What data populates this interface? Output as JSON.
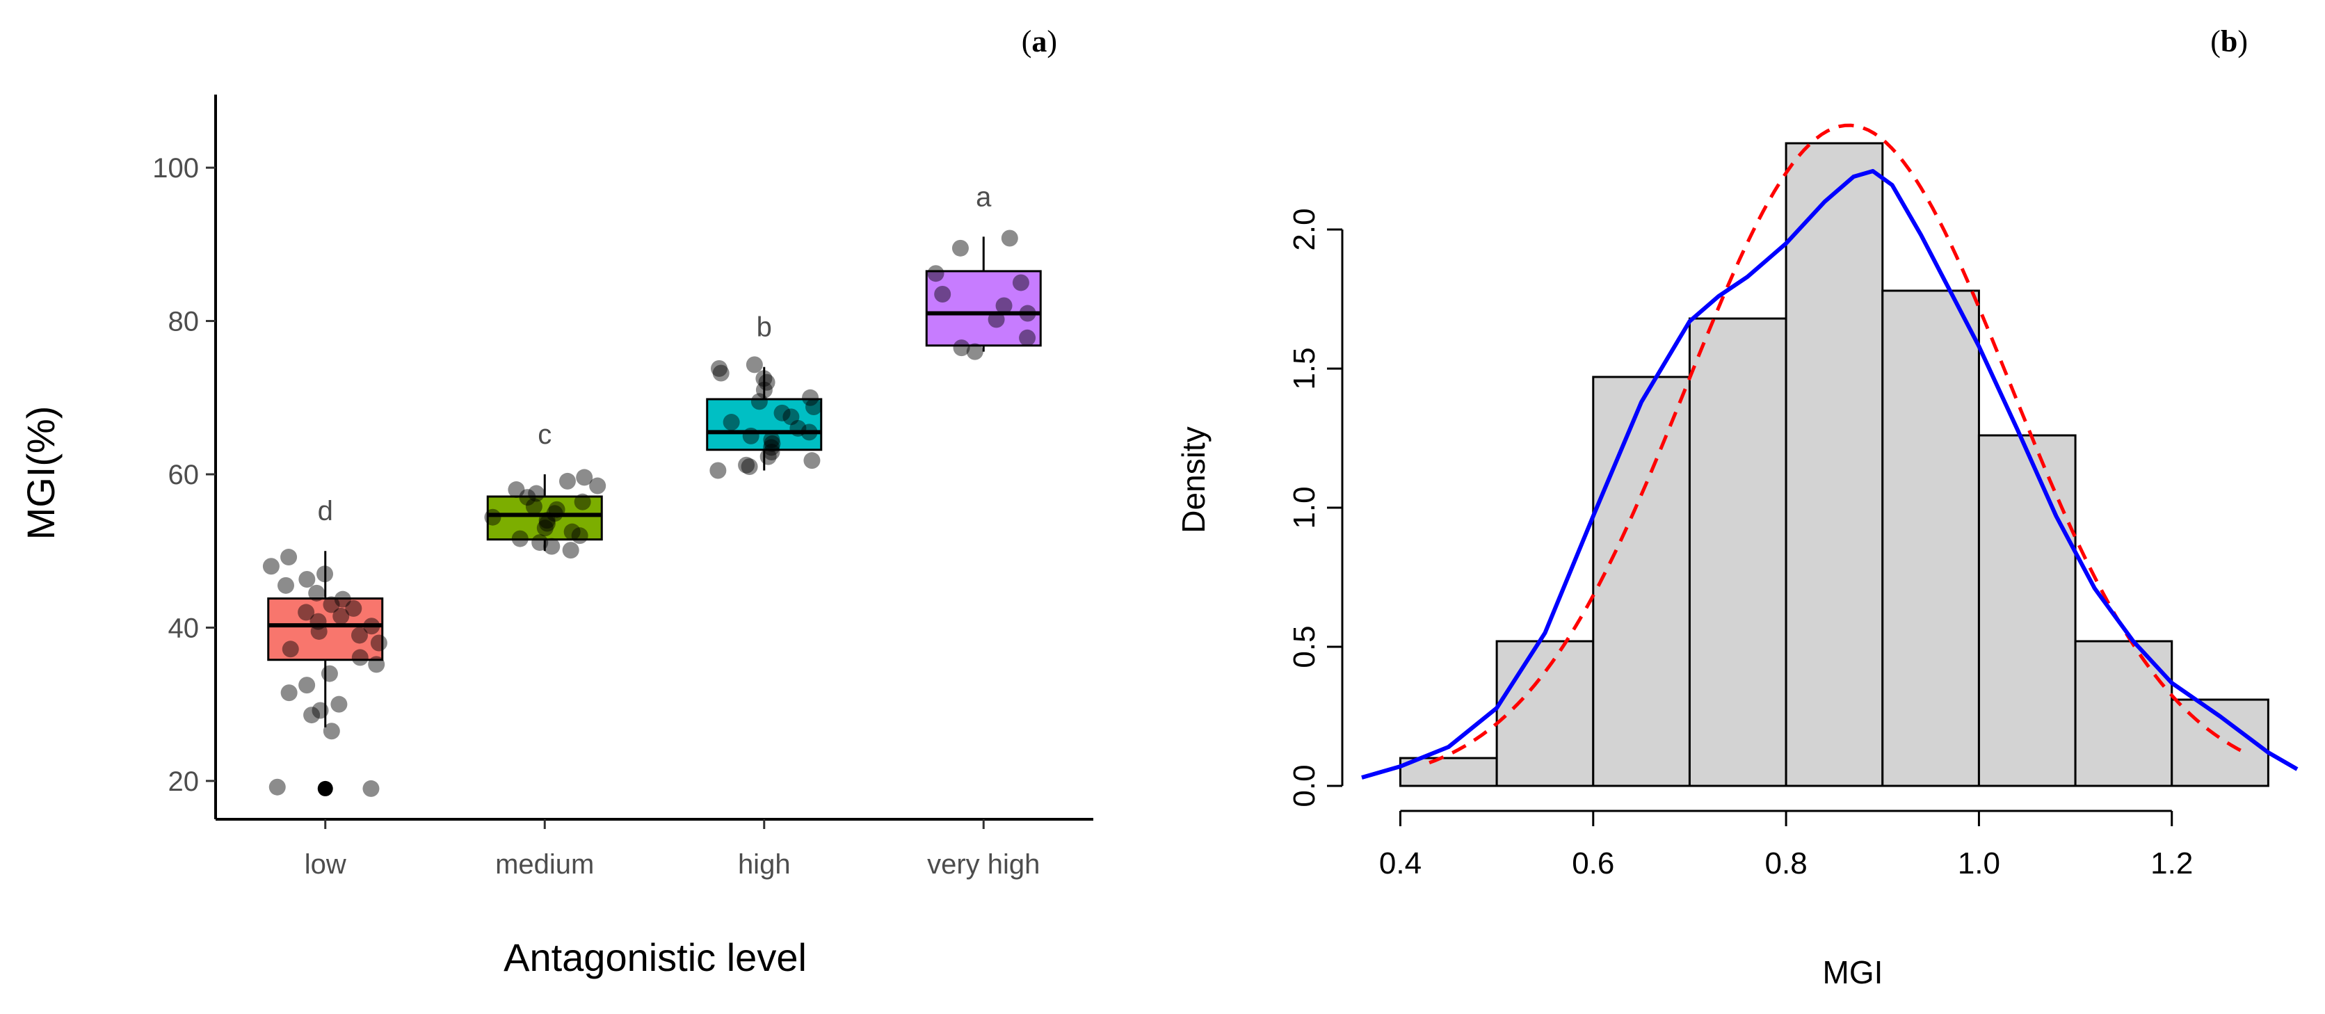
{
  "chart_data": [
    {
      "id": "a",
      "panel_label": "a",
      "type": "box",
      "xlabel": "Antagonistic level",
      "ylabel": "MGI(%)",
      "ylim": [
        15,
        105
      ],
      "yticks": [
        20,
        40,
        60,
        80,
        100
      ],
      "categories": [
        "low",
        "medium",
        "high",
        "very high"
      ],
      "colors": [
        "#F8766D",
        "#7CAE00",
        "#00BFC4",
        "#C77CFF"
      ],
      "boxes": [
        {
          "category": "low",
          "q1": 35.8,
          "median": 40.3,
          "q3": 43.8,
          "whisker_low": 27,
          "whisker_high": 50,
          "outliers": [
            19
          ],
          "letter": "d",
          "points": [
            19,
            19.2,
            26.5,
            28.6,
            29.2,
            30,
            31.5,
            32.5,
            34,
            35.2,
            36.1,
            37.2,
            38,
            39,
            39.5,
            40.2,
            40.8,
            41.5,
            42,
            42.5,
            43,
            43.7,
            44.5,
            45.5,
            46.3,
            47,
            48,
            49.2
          ]
        },
        {
          "category": "medium",
          "q1": 51.5,
          "median": 54.7,
          "q3": 57.1,
          "whisker_low": 50,
          "whisker_high": 60,
          "outliers": [],
          "letter": "c",
          "points": [
            50.1,
            50.6,
            51.1,
            51.6,
            52,
            52.5,
            53,
            53.6,
            54,
            54.4,
            54.9,
            55.4,
            55.8,
            56.4,
            57,
            57.5,
            58,
            58.5,
            59.1,
            59.6
          ]
        },
        {
          "category": "high",
          "q1": 63.2,
          "median": 65.5,
          "q3": 69.8,
          "whisker_low": 60.5,
          "whisker_high": 74,
          "outliers": [],
          "letter": "b",
          "points": [
            60.5,
            61,
            61.2,
            61.8,
            62.3,
            62.9,
            63.5,
            64,
            64.5,
            65,
            65.5,
            66,
            66.8,
            67.5,
            68,
            68.8,
            69.5,
            70,
            71,
            72,
            72.5,
            73.2,
            73.8,
            74.3
          ]
        },
        {
          "category": "very high",
          "q1": 76.8,
          "median": 81,
          "q3": 86.5,
          "whisker_low": 76,
          "whisker_high": 91,
          "outliers": [],
          "letter": "a",
          "points": [
            76,
            76.5,
            77.8,
            80.2,
            81,
            82,
            83.5,
            85,
            86.2,
            89.5,
            90.8
          ]
        }
      ]
    },
    {
      "id": "b",
      "panel_label": "b",
      "type": "histogram",
      "xlabel": "MGI",
      "ylabel": "Density",
      "xlim": [
        0.36,
        1.33
      ],
      "ylim": [
        0,
        2.45
      ],
      "xticks": [
        "0.4",
        "0.6",
        "0.8",
        "1.0",
        "1.2"
      ],
      "yticks": [
        "0.0",
        "0.5",
        "1.0",
        "1.5",
        "2.0"
      ],
      "bins": [
        {
          "from": 0.4,
          "to": 0.5,
          "density": 0.1
        },
        {
          "from": 0.5,
          "to": 0.6,
          "density": 0.52
        },
        {
          "from": 0.6,
          "to": 0.7,
          "density": 1.47
        },
        {
          "from": 0.7,
          "to": 0.8,
          "density": 1.68
        },
        {
          "from": 0.8,
          "to": 0.9,
          "density": 2.31
        },
        {
          "from": 0.9,
          "to": 1.0,
          "density": 1.78
        },
        {
          "from": 1.0,
          "to": 1.1,
          "density": 1.26
        },
        {
          "from": 1.1,
          "to": 1.2,
          "density": 0.52
        },
        {
          "from": 1.2,
          "to": 1.3,
          "density": 0.31
        }
      ],
      "bar_color": "#d3d3d3",
      "series": [
        {
          "name": "kernel density",
          "style": "solid",
          "color": "#0000ff",
          "x": [
            0.36,
            0.4,
            0.45,
            0.5,
            0.55,
            0.6,
            0.65,
            0.7,
            0.73,
            0.76,
            0.8,
            0.84,
            0.87,
            0.89,
            0.91,
            0.94,
            0.97,
            1.0,
            1.04,
            1.08,
            1.12,
            1.16,
            1.2,
            1.25,
            1.3,
            1.33
          ],
          "y": [
            0.03,
            0.07,
            0.14,
            0.28,
            0.55,
            0.97,
            1.38,
            1.67,
            1.76,
            1.83,
            1.95,
            2.1,
            2.19,
            2.21,
            2.16,
            1.98,
            1.78,
            1.58,
            1.28,
            0.97,
            0.71,
            0.52,
            0.37,
            0.25,
            0.12,
            0.06
          ]
        },
        {
          "name": "normal fit",
          "style": "dashed",
          "color": "#ff0000",
          "mean": 0.865,
          "sd": 0.168,
          "x_from": 0.43,
          "x_to": 1.28
        }
      ]
    }
  ]
}
